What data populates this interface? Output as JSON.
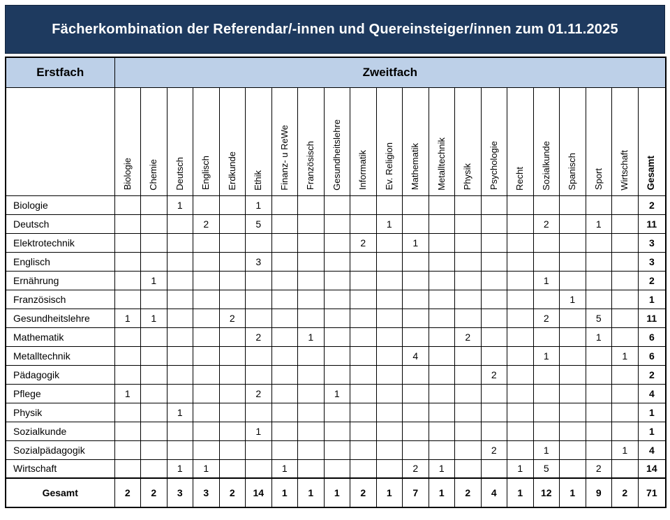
{
  "title": "Fächerkombination der Referendar/-innen und Quereinsteiger/innen zum 01.11.2025",
  "colors": {
    "banner_bg": "#1E3A5F",
    "banner_text": "#FFFFFF",
    "subheader_bg": "#BDD0E8",
    "grid_line": "#000000"
  },
  "header": {
    "first_label": "Erstfach",
    "second_label": "Zweitfach"
  },
  "table": {
    "columns": [
      "Biologie",
      "Chemie",
      "Deutsch",
      "Englisch",
      "Erdkunde",
      "Ethik",
      "Finanz- u ReWe",
      "Französisch",
      "Gesundheitslehre",
      "Informatik",
      "Ev. Religion",
      "Mathematik",
      "Metalltechnik",
      "Physik",
      "Psychologie",
      "Recht",
      "Sozialkunde",
      "Spanisch",
      "Sport",
      "Wirtschaft"
    ],
    "total_label": "Gesamt",
    "rows": [
      {
        "label": "Biologie",
        "values": [
          "",
          "",
          "1",
          "",
          "",
          "1",
          "",
          "",
          "",
          "",
          "",
          "",
          "",
          "",
          "",
          "",
          "",
          "",
          "",
          ""
        ],
        "total": "2"
      },
      {
        "label": "Deutsch",
        "values": [
          "",
          "",
          "",
          "2",
          "",
          "5",
          "",
          "",
          "",
          "",
          "1",
          "",
          "",
          "",
          "",
          "",
          "2",
          "",
          "1",
          ""
        ],
        "total": "11"
      },
      {
        "label": "Elektrotechnik",
        "values": [
          "",
          "",
          "",
          "",
          "",
          "",
          "",
          "",
          "",
          "2",
          "",
          "1",
          "",
          "",
          "",
          "",
          "",
          "",
          "",
          ""
        ],
        "total": "3"
      },
      {
        "label": "Englisch",
        "values": [
          "",
          "",
          "",
          "",
          "",
          "3",
          "",
          "",
          "",
          "",
          "",
          "",
          "",
          "",
          "",
          "",
          "",
          "",
          "",
          ""
        ],
        "total": "3"
      },
      {
        "label": "Ernährung",
        "values": [
          "",
          "1",
          "",
          "",
          "",
          "",
          "",
          "",
          "",
          "",
          "",
          "",
          "",
          "",
          "",
          "",
          "1",
          "",
          "",
          ""
        ],
        "total": "2"
      },
      {
        "label": "Französisch",
        "values": [
          "",
          "",
          "",
          "",
          "",
          "",
          "",
          "",
          "",
          "",
          "",
          "",
          "",
          "",
          "",
          "",
          "",
          "1",
          "",
          ""
        ],
        "total": "1"
      },
      {
        "label": "Gesundheitslehre",
        "values": [
          "1",
          "1",
          "",
          "",
          "2",
          "",
          "",
          "",
          "",
          "",
          "",
          "",
          "",
          "",
          "",
          "",
          "2",
          "",
          "5",
          ""
        ],
        "total": "11"
      },
      {
        "label": "Mathematik",
        "values": [
          "",
          "",
          "",
          "",
          "",
          "2",
          "",
          "1",
          "",
          "",
          "",
          "",
          "",
          "2",
          "",
          "",
          "",
          "",
          "1",
          ""
        ],
        "total": "6"
      },
      {
        "label": "Metalltechnik",
        "values": [
          "",
          "",
          "",
          "",
          "",
          "",
          "",
          "",
          "",
          "",
          "",
          "4",
          "",
          "",
          "",
          "",
          "1",
          "",
          "",
          "1"
        ],
        "total": "6"
      },
      {
        "label": "Pädagogik",
        "values": [
          "",
          "",
          "",
          "",
          "",
          "",
          "",
          "",
          "",
          "",
          "",
          "",
          "",
          "",
          "2",
          "",
          "",
          "",
          "",
          ""
        ],
        "total": "2"
      },
      {
        "label": "Pflege",
        "values": [
          "1",
          "",
          "",
          "",
          "",
          "2",
          "",
          "",
          "1",
          "",
          "",
          "",
          "",
          "",
          "",
          "",
          "",
          "",
          "",
          ""
        ],
        "total": "4"
      },
      {
        "label": "Physik",
        "values": [
          "",
          "",
          "1",
          "",
          "",
          "",
          "",
          "",
          "",
          "",
          "",
          "",
          "",
          "",
          "",
          "",
          "",
          "",
          "",
          ""
        ],
        "total": "1"
      },
      {
        "label": "Sozialkunde",
        "values": [
          "",
          "",
          "",
          "",
          "",
          "1",
          "",
          "",
          "",
          "",
          "",
          "",
          "",
          "",
          "",
          "",
          "",
          "",
          "",
          ""
        ],
        "total": "1"
      },
      {
        "label": "Sozialpädagogik",
        "values": [
          "",
          "",
          "",
          "",
          "",
          "",
          "",
          "",
          "",
          "",
          "",
          "",
          "",
          "",
          "2",
          "",
          "1",
          "",
          "",
          "1"
        ],
        "total": "4"
      },
      {
        "label": "Wirtschaft",
        "values": [
          "",
          "",
          "1",
          "1",
          "",
          "",
          "1",
          "",
          "",
          "",
          "",
          "2",
          "1",
          "",
          "",
          "1",
          "5",
          "",
          "2",
          ""
        ],
        "total": "14"
      }
    ],
    "totals": {
      "label": "Gesamt",
      "values": [
        "2",
        "2",
        "3",
        "3",
        "2",
        "14",
        "1",
        "1",
        "1",
        "2",
        "1",
        "7",
        "1",
        "2",
        "4",
        "1",
        "12",
        "1",
        "9",
        "2"
      ],
      "grand_total": "71"
    }
  }
}
